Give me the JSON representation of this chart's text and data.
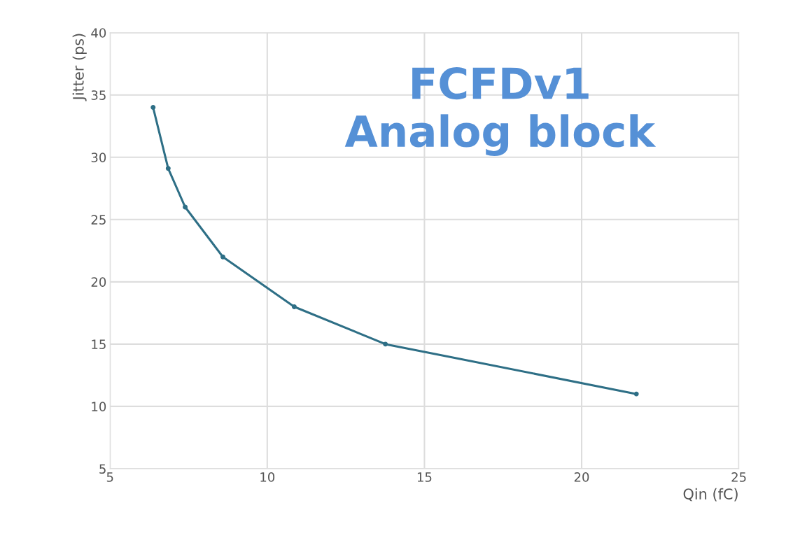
{
  "chart_data": {
    "type": "line",
    "xlabel": "Qin (fC)",
    "ylabel": "Jitter (ps)",
    "x": [
      6.37,
      6.85,
      7.39,
      8.59,
      10.86,
      13.76,
      21.74
    ],
    "series": [
      {
        "color": "#2e6f86",
        "values": [
          34.0,
          29.1,
          26.0,
          22.0,
          18.0,
          15.0,
          11.0
        ]
      }
    ],
    "xlim": [
      5,
      25
    ],
    "xticks": [
      5,
      10,
      15,
      20,
      25
    ],
    "ylim": [
      5,
      40
    ],
    "yticks": [
      5,
      10,
      15,
      20,
      25,
      30,
      35,
      40
    ],
    "grid": true,
    "marker": "circle",
    "line_style": "solid",
    "annotations": [
      "FCFDv1\nAnalog block"
    ]
  }
}
